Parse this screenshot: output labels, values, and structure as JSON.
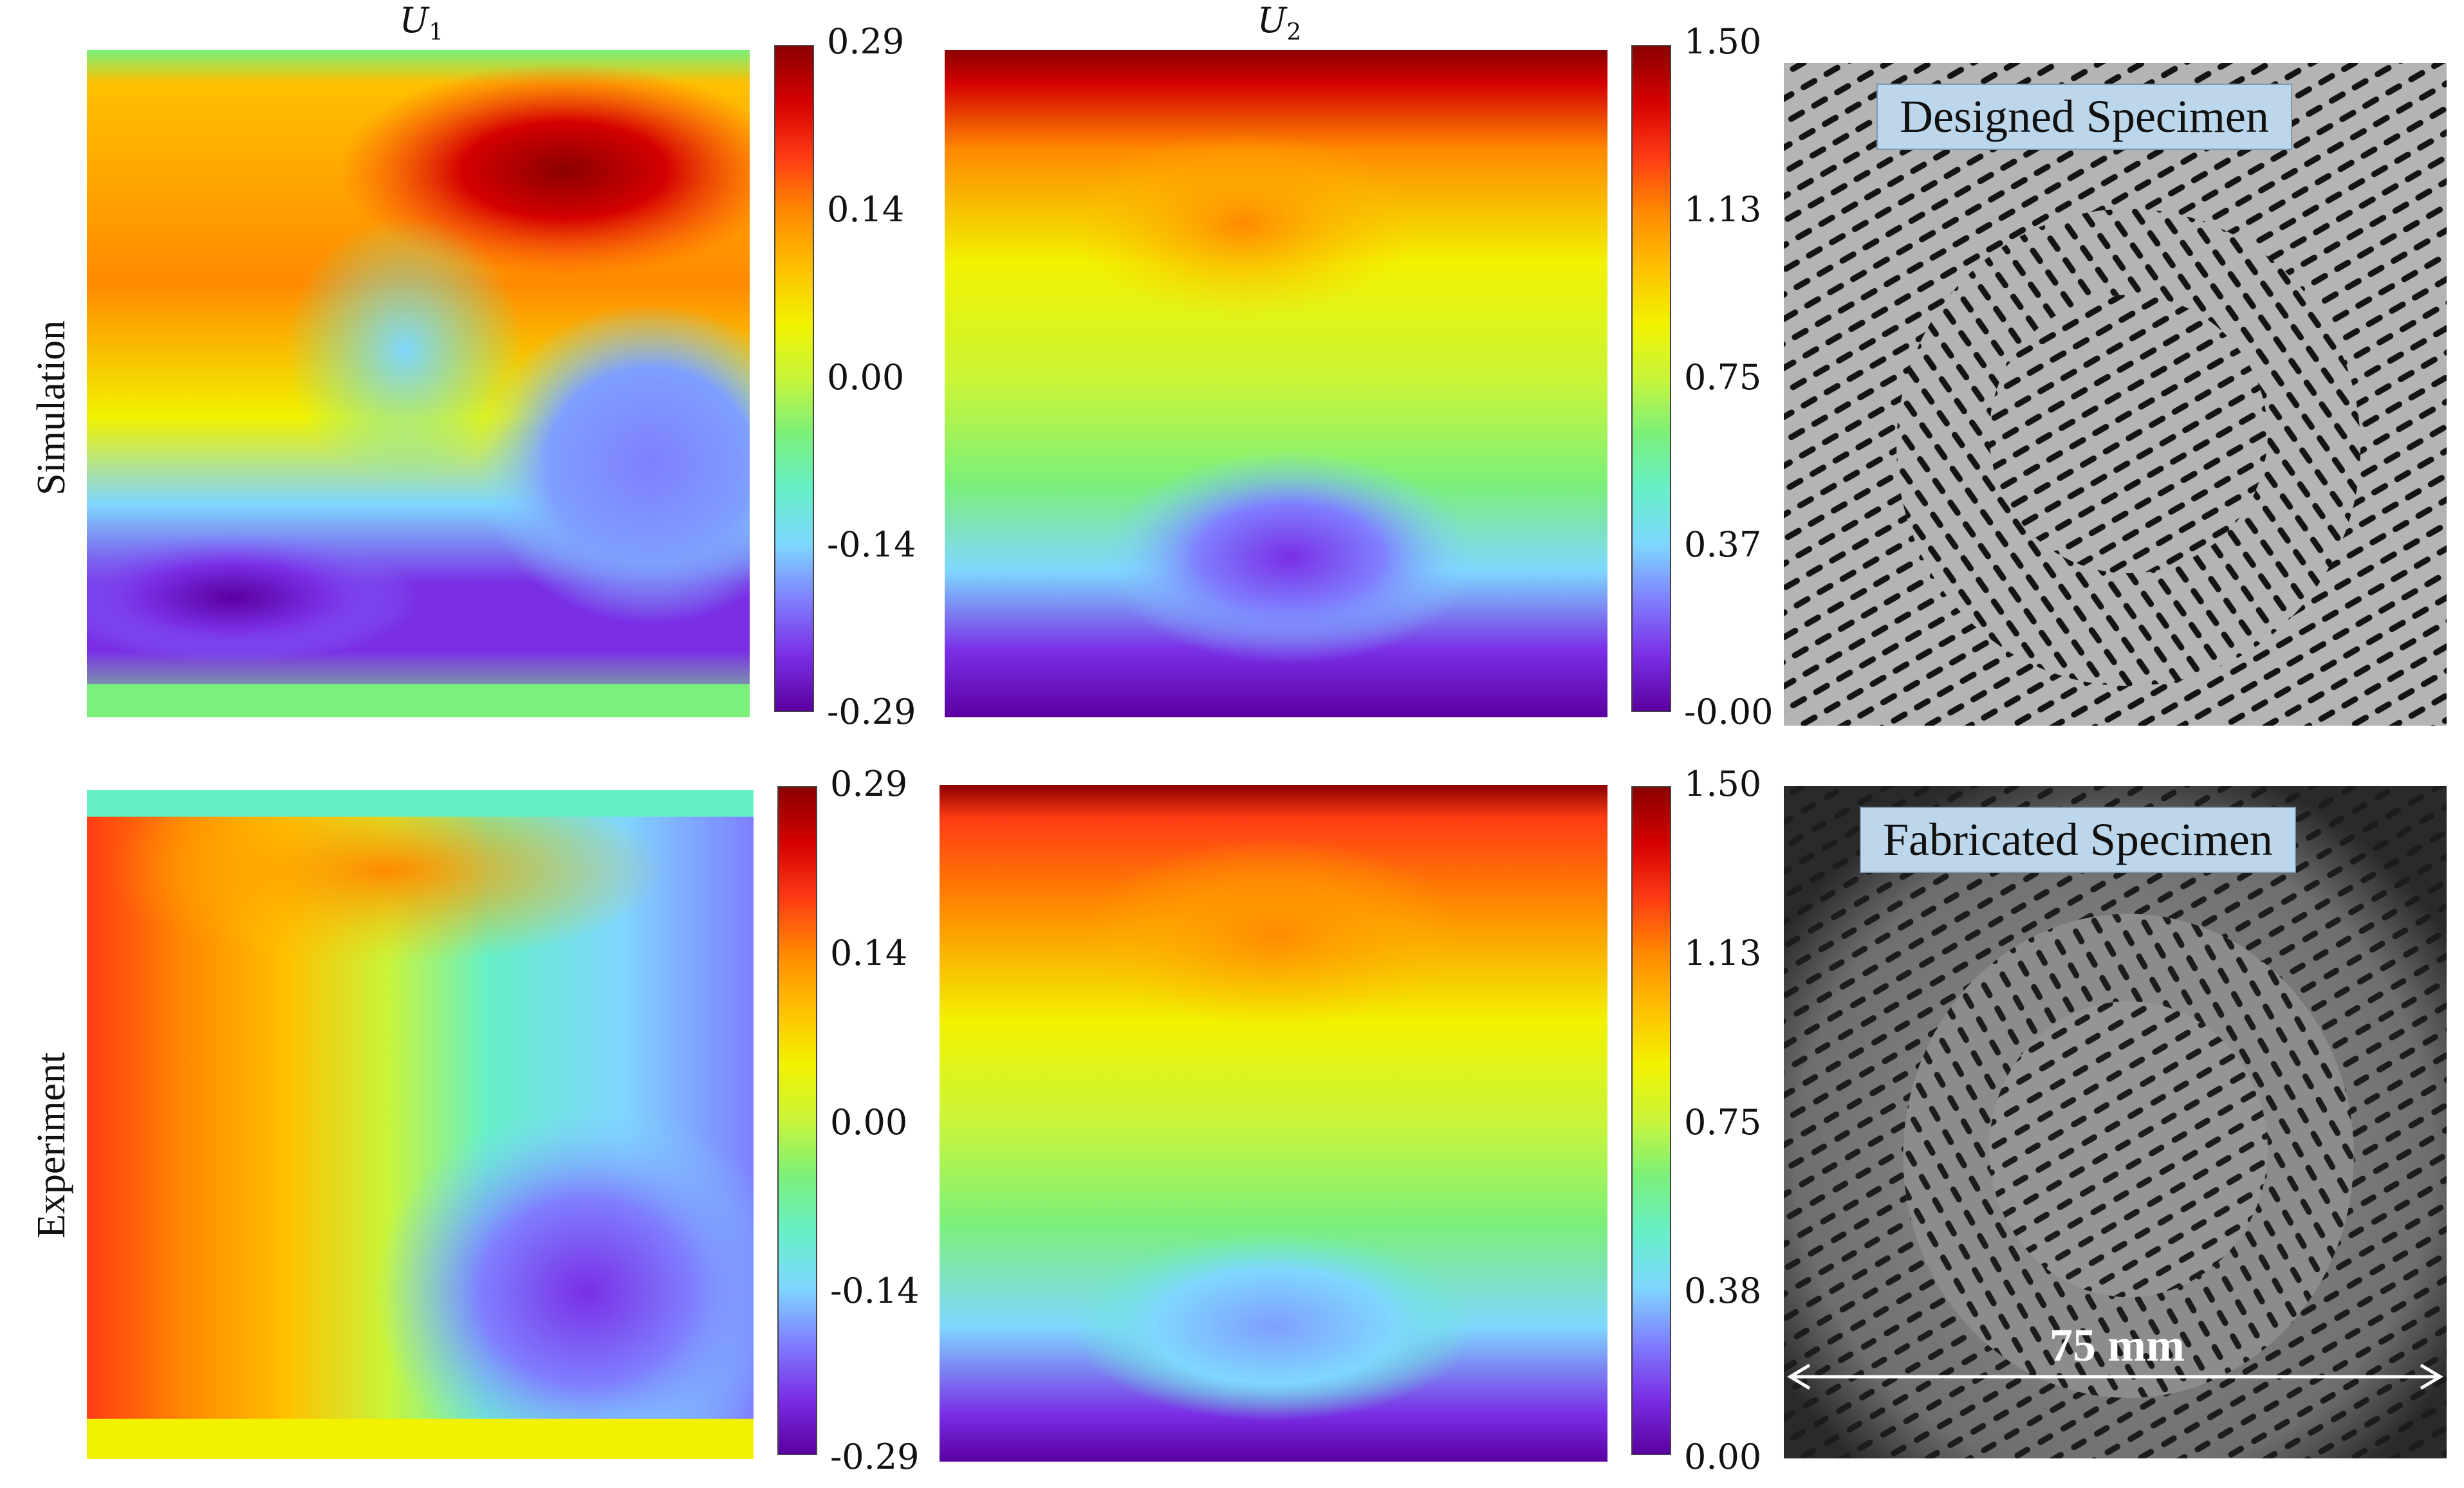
{
  "columns": {
    "u1": {
      "symbol": "U",
      "sub": "1"
    },
    "u2": {
      "symbol": "U",
      "sub": "2"
    }
  },
  "rows": {
    "simulation": "Simulation",
    "experiment": "Experiment"
  },
  "colorbars": {
    "sim_u1": [
      "0.29",
      "0.14",
      "0.00",
      "-0.14",
      "-0.29"
    ],
    "sim_u2": [
      "1.50",
      "1.13",
      "0.75",
      "0.37",
      "-0.00"
    ],
    "exp_u1": [
      "0.29",
      "0.14",
      "0.00",
      "-0.14",
      "-0.29"
    ],
    "exp_u2": [
      "1.50",
      "1.13",
      "0.75",
      "0.38",
      "0.00"
    ]
  },
  "specimens": {
    "designed": "Designed Specimen",
    "fabricated": "Fabricated Specimen",
    "scale": "75 mm"
  },
  "colormap": [
    "#5a00a0",
    "#7a2fe6",
    "#7f7fff",
    "#7fd7ff",
    "#66f0c8",
    "#7bf07a",
    "#c8f53a",
    "#f2f200",
    "#ffc000",
    "#ff8a00",
    "#ff3c14",
    "#d40000",
    "#8b0000"
  ]
}
